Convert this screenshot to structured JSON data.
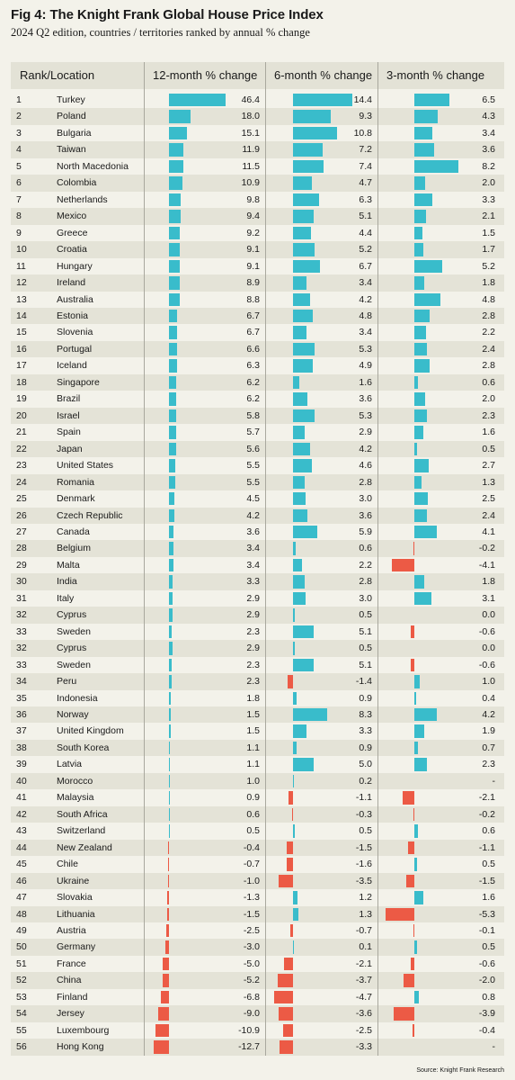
{
  "title": "Fig 4: The Knight Frank Global House Price Index",
  "subtitle": "2024 Q2 edition, countries / territories ranked by annual % change",
  "source": "Source: Knight Frank Research",
  "colors": {
    "positive": "#39bccb",
    "negative": "#ec5a45",
    "row_alt": "#e4e3d7",
    "background": "#f3f2ea"
  },
  "chart_data": {
    "type": "table",
    "columns": [
      "Rank/Location",
      "12-month % change",
      "6-month % change",
      "3-month % change"
    ],
    "rows": [
      [
        "1",
        "Turkey",
        "46.4",
        "14.4",
        "6.5"
      ],
      [
        "2",
        "Poland",
        "18.0",
        "9.3",
        "4.3"
      ],
      [
        "3",
        "Bulgaria",
        "15.1",
        "10.8",
        "3.4"
      ],
      [
        "4",
        "Taiwan",
        "11.9",
        "7.2",
        "3.6"
      ],
      [
        "5",
        "North Macedonia",
        "11.5",
        "7.4",
        "8.2"
      ],
      [
        "6",
        "Colombia",
        "10.9",
        "4.7",
        "2.0"
      ],
      [
        "7",
        "Netherlands",
        "9.8",
        "6.3",
        "3.3"
      ],
      [
        "8",
        "Mexico",
        "9.4",
        "5.1",
        "2.1"
      ],
      [
        "9",
        "Greece",
        "9.2",
        "4.4",
        "1.5"
      ],
      [
        "10",
        "Croatia",
        "9.1",
        "5.2",
        "1.7"
      ],
      [
        "11",
        "Hungary",
        "9.1",
        "6.7",
        "5.2"
      ],
      [
        "12",
        "Ireland",
        "8.9",
        "3.4",
        "1.8"
      ],
      [
        "13",
        "Australia",
        "8.8",
        "4.2",
        "4.8"
      ],
      [
        "14",
        "Estonia",
        "6.7",
        "4.8",
        "2.8"
      ],
      [
        "15",
        "Slovenia",
        "6.7",
        "3.4",
        "2.2"
      ],
      [
        "16",
        "Portugal",
        "6.6",
        "5.3",
        "2.4"
      ],
      [
        "17",
        "Iceland",
        "6.3",
        "4.9",
        "2.8"
      ],
      [
        "18",
        "Singapore",
        "6.2",
        "1.6",
        "0.6"
      ],
      [
        "19",
        "Brazil",
        "6.2",
        "3.6",
        "2.0"
      ],
      [
        "20",
        "Israel",
        "5.8",
        "5.3",
        "2.3"
      ],
      [
        "21",
        "Spain",
        "5.7",
        "2.9",
        "1.6"
      ],
      [
        "22",
        "Japan",
        "5.6",
        "4.2",
        "0.5"
      ],
      [
        "23",
        "United States",
        "5.5",
        "4.6",
        "2.7"
      ],
      [
        "24",
        "Romania",
        "5.5",
        "2.8",
        "1.3"
      ],
      [
        "25",
        "Denmark",
        "4.5",
        "3.0",
        "2.5"
      ],
      [
        "26",
        "Czech Republic",
        "4.2",
        "3.6",
        "2.4"
      ],
      [
        "27",
        "Canada",
        "3.6",
        "5.9",
        "4.1"
      ],
      [
        "28",
        "Belgium",
        "3.4",
        "0.6",
        "-0.2"
      ],
      [
        "29",
        "Malta",
        "3.4",
        "2.2",
        "-4.1"
      ],
      [
        "30",
        "India",
        "3.3",
        "2.8",
        "1.8"
      ],
      [
        "31",
        "Italy",
        "2.9",
        "3.0",
        "3.1"
      ],
      [
        "32",
        "Cyprus",
        "2.9",
        "0.5",
        "0.0"
      ],
      [
        "33",
        "Sweden",
        "2.3",
        "5.1",
        "-0.6"
      ],
      [
        "32",
        "Cyprus",
        "2.9",
        "0.5",
        "0.0"
      ],
      [
        "33",
        "Sweden",
        "2.3",
        "5.1",
        "-0.6"
      ],
      [
        "34",
        "Peru",
        "2.3",
        "-1.4",
        "1.0"
      ],
      [
        "35",
        "Indonesia",
        "1.8",
        "0.9",
        "0.4"
      ],
      [
        "36",
        "Norway",
        "1.5",
        "8.3",
        "4.2"
      ],
      [
        "37",
        "United Kingdom",
        "1.5",
        "3.3",
        "1.9"
      ],
      [
        "38",
        "South Korea",
        "1.1",
        "0.9",
        "0.7"
      ],
      [
        "39",
        "Latvia",
        "1.1",
        "5.0",
        "2.3"
      ],
      [
        "40",
        "Morocco",
        "1.0",
        "0.2",
        "-"
      ],
      [
        "41",
        "Malaysia",
        "0.9",
        "-1.1",
        "-2.1"
      ],
      [
        "42",
        "South Africa",
        "0.6",
        "-0.3",
        "-0.2"
      ],
      [
        "43",
        "Switzerland",
        "0.5",
        "0.5",
        "0.6"
      ],
      [
        "44",
        "New Zealand",
        "-0.4",
        "-1.5",
        "-1.1"
      ],
      [
        "45",
        "Chile",
        "-0.7",
        "-1.6",
        "0.5"
      ],
      [
        "46",
        "Ukraine",
        "-1.0",
        "-3.5",
        "-1.5"
      ],
      [
        "47",
        "Slovakia",
        "-1.3",
        "1.2",
        "1.6"
      ],
      [
        "48",
        "Lithuania",
        "-1.5",
        "1.3",
        "-5.3"
      ],
      [
        "49",
        "Austria",
        "-2.5",
        "-0.7",
        "-0.1"
      ],
      [
        "50",
        "Germany",
        "-3.0",
        "0.1",
        "0.5"
      ],
      [
        "51",
        "France",
        "-5.0",
        "-2.1",
        "-0.6"
      ],
      [
        "52",
        "China",
        "-5.2",
        "-3.7",
        "-2.0"
      ],
      [
        "53",
        "Finland",
        "-6.8",
        "-4.7",
        "0.8"
      ],
      [
        "54",
        "Jersey",
        "-9.0",
        "-3.6",
        "-3.9"
      ],
      [
        "55",
        "Luxembourg",
        "-10.9",
        "-2.5",
        "-0.4"
      ],
      [
        "56",
        "Hong Kong",
        "-12.7",
        "-3.3",
        "-"
      ]
    ]
  }
}
